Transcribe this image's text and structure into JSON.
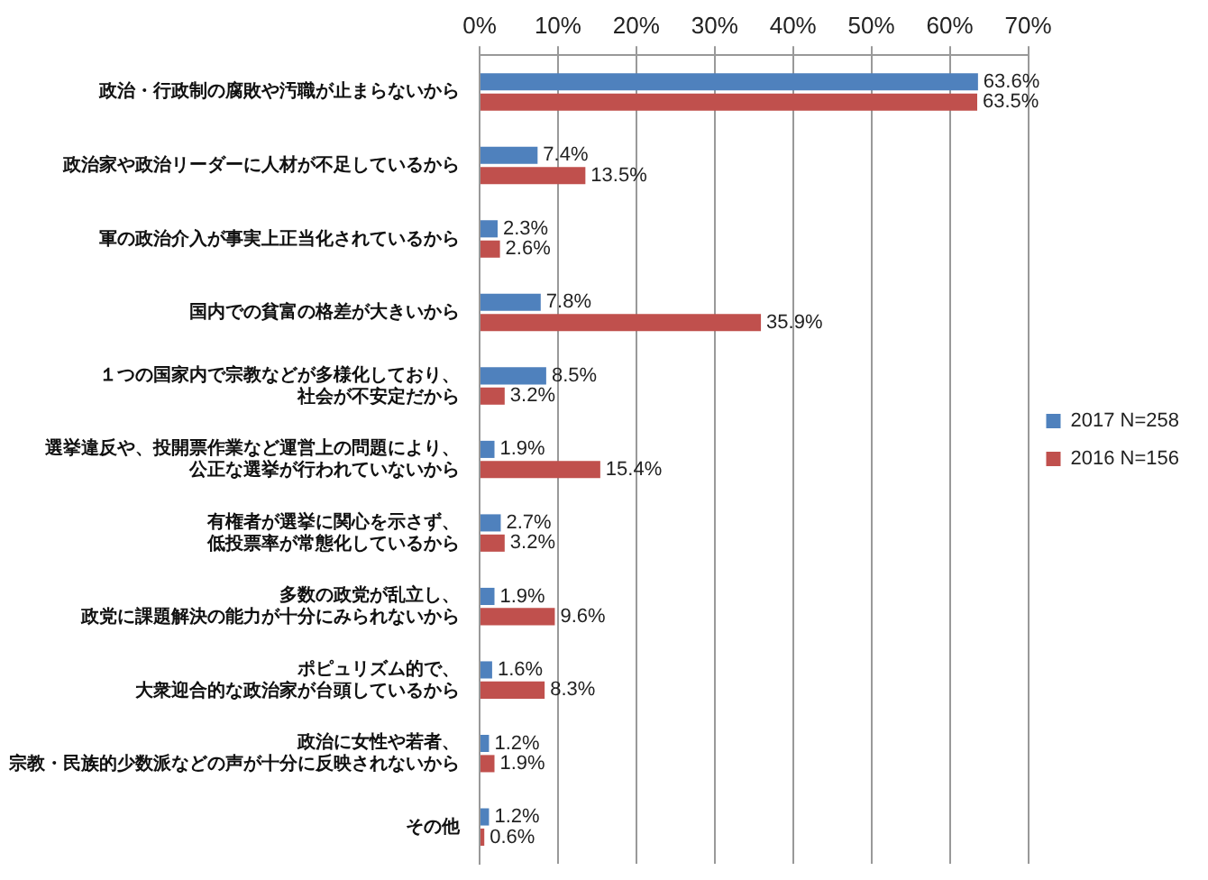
{
  "chart_data": {
    "type": "bar",
    "orientation": "horizontal",
    "categories": [
      "政治・行政制の腐敗や汚職が止まらないから",
      "政治家や政治リーダーに人材が不足しているから",
      "軍の政治介入が事実上正当化されているから",
      "国内での貧富の格差が大きいから",
      "１つの国家内で宗教などが多様化しており、社会が不安定だから",
      "選挙違反や、投開票作業など運営上の問題により、公正な選挙が行われていないから",
      "有権者が選挙に関心を示さず、低投票率が常態化しているから",
      "多数の政党が乱立し、政党に課題解決の能力が十分にみられないから",
      "ポピュリズム的で、大衆迎合的な政治家が台頭しているから",
      "政治に女性や若者、宗教・民族的少数派などの声が十分に反映されないから",
      "その他"
    ],
    "series": [
      {
        "name": "2017 N=258",
        "color": "#4f81bd",
        "values": [
          63.6,
          7.4,
          2.3,
          7.8,
          8.5,
          1.9,
          2.7,
          1.9,
          1.6,
          1.2,
          1.2
        ],
        "value_labels": [
          "63.6%",
          "7.4%",
          "2.3%",
          "7.8%",
          "8.5%",
          "1.9%",
          "2.7%",
          "1.9%",
          "1.6%",
          "1.2%",
          "1.2%"
        ]
      },
      {
        "name": "2016 N=156",
        "color": "#c0504d",
        "values": [
          63.5,
          13.5,
          2.6,
          35.9,
          3.2,
          15.4,
          3.2,
          9.6,
          8.3,
          1.9,
          0.6
        ],
        "value_labels": [
          "63.5%",
          "13.5%",
          "2.6%",
          "35.9%",
          "3.2%",
          "15.4%",
          "3.2%",
          "9.6%",
          "8.3%",
          "1.9%",
          "0.6%"
        ]
      }
    ],
    "xlim": [
      0,
      70
    ],
    "xticks": [
      {
        "value": 0,
        "label": "0%"
      },
      {
        "value": 10,
        "label": "10%"
      },
      {
        "value": 20,
        "label": "20%"
      },
      {
        "value": 30,
        "label": "30%"
      },
      {
        "value": 40,
        "label": "40%"
      },
      {
        "value": 50,
        "label": "50%"
      },
      {
        "value": 60,
        "label": "60%"
      },
      {
        "value": 70,
        "label": "70%"
      }
    ],
    "grid": "x",
    "legend": "right"
  }
}
